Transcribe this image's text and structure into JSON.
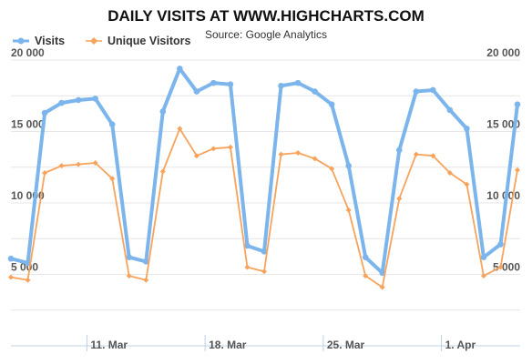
{
  "chart_data": {
    "type": "line",
    "title": "DAILY VISITS AT WWW.HIGHCHARTS.COM",
    "subtitle": "Source: Google Analytics",
    "legend_position": "top-left",
    "ylim": [
      0,
      20000
    ],
    "y_ticks": [
      5000,
      10000,
      15000,
      20000
    ],
    "y_tick_labels": [
      "5 000",
      "10 000",
      "15 000",
      "20 000"
    ],
    "grid": true,
    "x_start": "2013-03-06",
    "x_ticks": [
      "11. Mar",
      "18. Mar",
      "25. Mar",
      "1. Apr"
    ],
    "series": [
      {
        "name": "Visits",
        "color": "#7cb5ec",
        "values": [
          6100,
          5800,
          16300,
          17000,
          17200,
          17300,
          15500,
          6200,
          5900,
          16400,
          19400,
          17800,
          18400,
          18300,
          7000,
          6600,
          18200,
          18400,
          17800,
          16900,
          12600,
          6200,
          5100,
          13700,
          17800,
          17900,
          16500,
          15200,
          6200,
          7100,
          16900
        ]
      },
      {
        "name": "Unique Visitors",
        "color": "#f7a35c",
        "values": [
          4800,
          4600,
          12100,
          12600,
          12700,
          12800,
          11700,
          4900,
          4600,
          12200,
          15200,
          13300,
          13800,
          13900,
          5500,
          5200,
          13400,
          13500,
          13100,
          12400,
          9500,
          4900,
          4100,
          10300,
          13400,
          13300,
          12100,
          11300,
          4900,
          5500,
          12300
        ]
      }
    ]
  }
}
